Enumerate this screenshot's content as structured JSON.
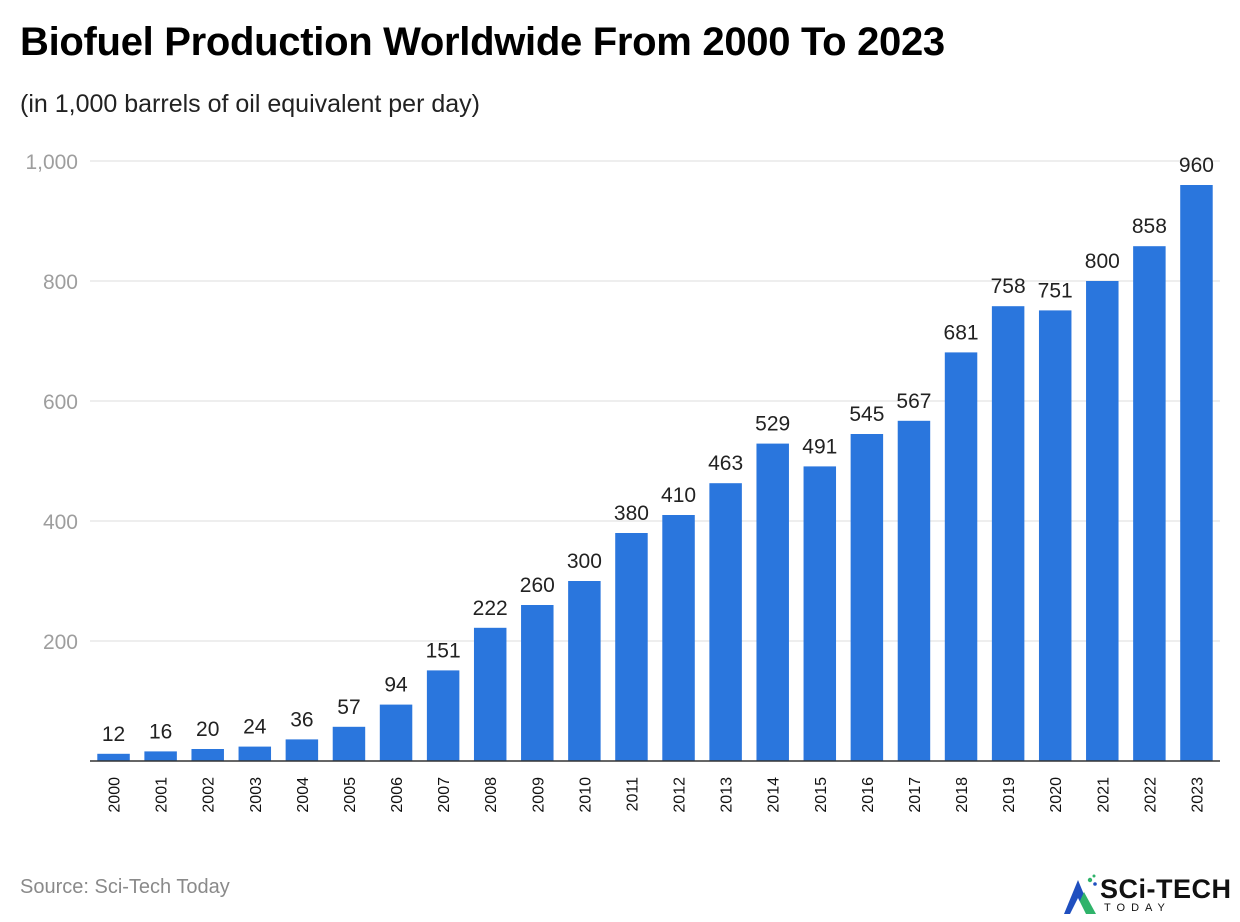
{
  "header": {
    "title": "Biofuel Production Worldwide From 2000 To 2023",
    "subtitle": "(in 1,000 barrels of oil equivalent per day)"
  },
  "footer": {
    "source": "Source: Sci-Tech Today"
  },
  "logo": {
    "name": "SCi-TECH",
    "tagline": "TODAY"
  },
  "colors": {
    "bar": "#2a76dd",
    "grid": "#dddddd",
    "axis_tick": "#9e9e9e",
    "label": "#222222"
  },
  "chart_data": {
    "type": "bar",
    "categories": [
      "2000",
      "2001",
      "2002",
      "2003",
      "2004",
      "2005",
      "2006",
      "2007",
      "2008",
      "2009",
      "2010",
      "2011",
      "2012",
      "2013",
      "2014",
      "2015",
      "2016",
      "2017",
      "2018",
      "2019",
      "2020",
      "2021",
      "2022",
      "2023"
    ],
    "values": [
      12,
      16,
      20,
      24,
      36,
      57,
      94,
      151,
      222,
      260,
      300,
      380,
      410,
      463,
      529,
      491,
      545,
      567,
      681,
      758,
      751,
      800,
      858,
      960
    ],
    "ylim": [
      0,
      1000
    ],
    "yticks": [
      200,
      400,
      600,
      800,
      1000
    ],
    "ytick_labels": [
      "200",
      "400",
      "600",
      "800",
      "1,000"
    ],
    "xlabel": "",
    "ylabel": "",
    "grid": true,
    "data_labels": true
  }
}
